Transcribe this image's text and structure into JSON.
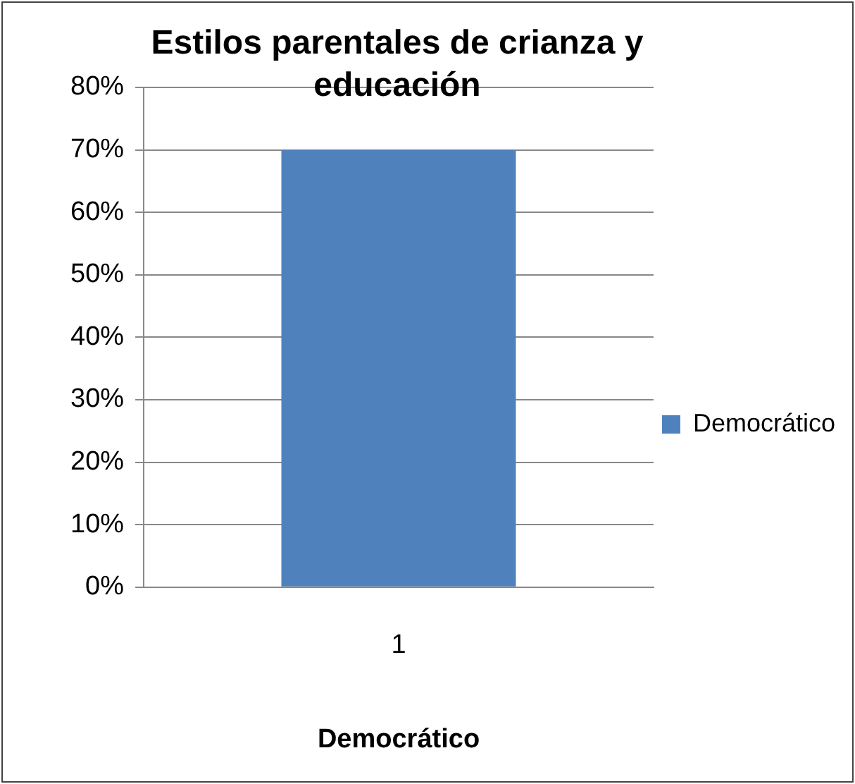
{
  "chart_data": {
    "type": "bar",
    "title": "Estilos parentales de crianza y educación",
    "xlabel": "Democrático",
    "categories": [
      "1"
    ],
    "series": [
      {
        "name": "Democrático",
        "color": "#4f81bd",
        "values": [
          70
        ]
      }
    ],
    "ylim": [
      0,
      80
    ],
    "yticks": [
      {
        "value": 0,
        "label": "0%"
      },
      {
        "value": 10,
        "label": "10%"
      },
      {
        "value": 20,
        "label": "20%"
      },
      {
        "value": 30,
        "label": "30%"
      },
      {
        "value": 40,
        "label": "40%"
      },
      {
        "value": 50,
        "label": "50%"
      },
      {
        "value": 60,
        "label": "60%"
      },
      {
        "value": 70,
        "label": "70%"
      },
      {
        "value": 80,
        "label": "80%"
      }
    ],
    "grid": "y",
    "legend": "right"
  }
}
